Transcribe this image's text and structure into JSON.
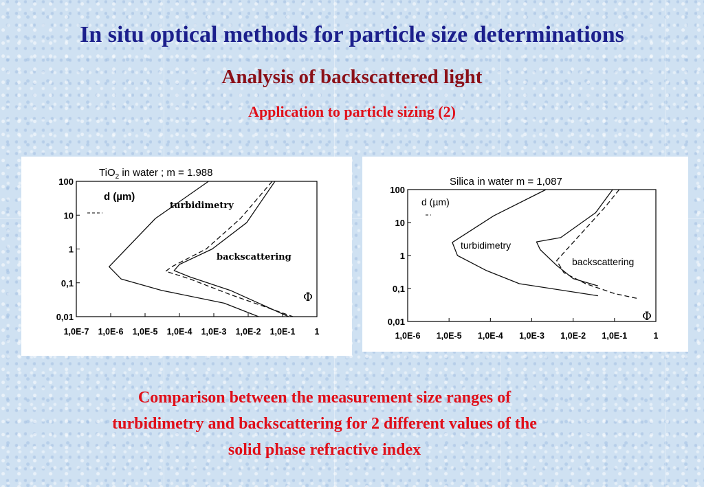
{
  "slide": {
    "title": "In situ optical methods for particle size determinations",
    "subtitle": "Analysis of backscattered light",
    "section": "Application to particle sizing (2)",
    "caption_lines": [
      "Comparison between the measurement size ranges of",
      "turbidimetry and backscattering for 2 different values of the",
      "solid phase refractive index"
    ],
    "colors": {
      "title": "#1b1f8c",
      "subtitle": "#8b1018",
      "accent": "#e0101a"
    }
  },
  "chart_data": [
    {
      "type": "line",
      "title_prefix": "TiO",
      "title_sub": "2",
      "title_suffix": " in water ; m = 1.988",
      "ylabel": "d (µm)",
      "xlabel": "Φ",
      "x_scale": "log",
      "y_scale": "log",
      "xlim": [
        1e-07,
        1
      ],
      "ylim": [
        0.01,
        100
      ],
      "x_ticks": [
        "1,0E-7",
        "1,0E-6",
        "1,0E-5",
        "1,0E-4",
        "1,0E-3",
        "1,0E-2",
        "1,0E-1",
        "1"
      ],
      "y_ticks": [
        "100",
        "10",
        "1",
        "0,1",
        "0,01"
      ],
      "annotations": [
        "turbidimetry",
        "backscattering"
      ],
      "series": [
        {
          "label": "turbidimetry",
          "style": "solid",
          "points": [
            [
              0.0007,
              100
            ],
            [
              2e-05,
              8
            ],
            [
              9e-07,
              0.3
            ],
            [
              2e-06,
              0.13
            ],
            [
              3e-05,
              0.06
            ],
            [
              0.002,
              0.025
            ],
            [
              0.02,
              0.01
            ]
          ]
        },
        {
          "label": "backscattering",
          "style": "solid",
          "points": [
            [
              0.06,
              100
            ],
            [
              0.009,
              6
            ],
            [
              0.0009,
              1.0
            ],
            [
              0.0001,
              0.35
            ],
            [
              7e-05,
              0.23
            ],
            [
              0.0002,
              0.15
            ],
            [
              0.003,
              0.06
            ],
            [
              0.15,
              0.01
            ]
          ]
        },
        {
          "label": "backscattering",
          "style": "dashed",
          "points": [
            [
              0.05,
              100
            ],
            [
              0.006,
              8
            ],
            [
              0.0006,
              1.0
            ],
            [
              6e-05,
              0.3
            ],
            [
              4e-05,
              0.22
            ],
            [
              0.0002,
              0.13
            ],
            [
              0.003,
              0.045
            ],
            [
              0.2,
              0.01
            ]
          ]
        }
      ]
    },
    {
      "type": "line",
      "title_prefix": "Silica in water      m = 1,087",
      "title_sub": "",
      "title_suffix": "",
      "ylabel": "d (µm)",
      "xlabel": "Φ",
      "x_scale": "log",
      "y_scale": "log",
      "xlim": [
        1e-06,
        1
      ],
      "ylim": [
        0.01,
        100
      ],
      "x_ticks": [
        "1,0E-6",
        "1,0E-5",
        "1,0E-4",
        "1,0E-3",
        "1,0E-2",
        "1,0E-1",
        "1"
      ],
      "y_ticks": [
        "100",
        "10",
        "1",
        "0,1",
        "0,01"
      ],
      "annotations": [
        "turbidimetry",
        "backscattering"
      ],
      "series": [
        {
          "label": "turbidimetry",
          "style": "solid",
          "points": [
            [
              0.0022,
              100
            ],
            [
              0.00012,
              16
            ],
            [
              1.2e-05,
              2.5
            ],
            [
              1.6e-05,
              1.0
            ],
            [
              8e-05,
              0.35
            ],
            [
              0.0005,
              0.14
            ],
            [
              0.04,
              0.06
            ]
          ]
        },
        {
          "label": "backscattering",
          "style": "solid",
          "points": [
            [
              0.09,
              100
            ],
            [
              0.035,
              20
            ],
            [
              0.005,
              3.5
            ],
            [
              0.0013,
              2.6
            ],
            [
              0.0016,
              1.5
            ],
            [
              0.004,
              0.5
            ],
            [
              0.01,
              0.2
            ],
            [
              0.04,
              0.12
            ]
          ]
        },
        {
          "label": "backscattering",
          "style": "dashed",
          "points": [
            [
              0.13,
              100
            ],
            [
              0.06,
              30
            ],
            [
              0.01,
              2.5
            ],
            [
              0.004,
              0.7
            ],
            [
              0.006,
              0.3
            ],
            [
              0.02,
              0.14
            ],
            [
              0.1,
              0.07
            ],
            [
              0.35,
              0.05
            ]
          ]
        }
      ]
    }
  ]
}
